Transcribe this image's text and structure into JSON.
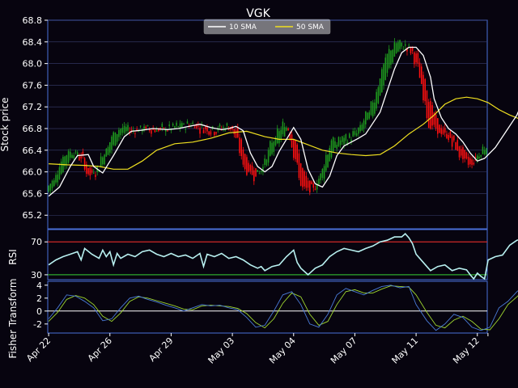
{
  "chart_data": [
    {
      "type": "candlestick",
      "title": "VGK",
      "ylabel": "Stock price",
      "ylim": [
        64.95,
        68.8
      ],
      "yticks": [
        65.2,
        65.6,
        66.0,
        66.4,
        66.8,
        67.2,
        67.6,
        68.0,
        68.4,
        68.8
      ],
      "x_dates": [
        "Apr 22",
        "Apr 26",
        "Apr 29",
        "May 03",
        "May 04",
        "May 07",
        "May 11",
        "May 12"
      ],
      "x_tick_index": [
        0,
        34,
        68,
        102,
        136,
        170,
        204,
        238
      ],
      "n_points": 244,
      "up_color": "#1e9a1e",
      "down_color": "#ff1010",
      "legend": {
        "placement": "top-center",
        "entries": [
          "10 SMA",
          "50 SMA"
        ]
      },
      "sma10": {
        "name": "10 SMA",
        "color": "#ffffff",
        "points": [
          [
            0,
            65.55
          ],
          [
            6,
            65.72
          ],
          [
            12,
            66.1
          ],
          [
            16,
            66.3
          ],
          [
            22,
            66.32
          ],
          [
            25,
            66.1
          ],
          [
            30,
            65.98
          ],
          [
            36,
            66.3
          ],
          [
            42,
            66.65
          ],
          [
            46,
            66.75
          ],
          [
            52,
            66.77
          ],
          [
            58,
            66.8
          ],
          [
            66,
            66.78
          ],
          [
            72,
            66.8
          ],
          [
            78,
            66.84
          ],
          [
            84,
            66.88
          ],
          [
            90,
            66.82
          ],
          [
            96,
            66.78
          ],
          [
            100,
            66.8
          ],
          [
            104,
            66.84
          ],
          [
            108,
            66.76
          ],
          [
            112,
            66.35
          ],
          [
            116,
            66.1
          ],
          [
            120,
            66.0
          ],
          [
            124,
            66.1
          ],
          [
            128,
            66.38
          ],
          [
            132,
            66.6
          ],
          [
            136,
            66.82
          ],
          [
            140,
            66.6
          ],
          [
            144,
            66.05
          ],
          [
            148,
            65.78
          ],
          [
            152,
            65.72
          ],
          [
            156,
            65.92
          ],
          [
            160,
            66.3
          ],
          [
            164,
            66.48
          ],
          [
            168,
            66.55
          ],
          [
            172,
            66.62
          ],
          [
            176,
            66.7
          ],
          [
            180,
            66.9
          ],
          [
            184,
            67.1
          ],
          [
            188,
            67.5
          ],
          [
            192,
            67.9
          ],
          [
            196,
            68.2
          ],
          [
            200,
            68.3
          ],
          [
            204,
            68.3
          ],
          [
            208,
            68.15
          ],
          [
            212,
            67.75
          ],
          [
            214,
            67.35
          ],
          [
            218,
            67.0
          ],
          [
            222,
            66.8
          ],
          [
            226,
            66.7
          ],
          [
            230,
            66.55
          ],
          [
            234,
            66.35
          ],
          [
            238,
            66.2
          ],
          [
            242,
            66.25
          ],
          [
            248,
            66.45
          ],
          [
            254,
            66.75
          ],
          [
            260,
            67.05
          ],
          [
            265,
            67.45
          ]
        ]
      },
      "sma50": {
        "name": "50 SMA",
        "color": "#f0e020",
        "points": [
          [
            0,
            66.15
          ],
          [
            10,
            66.13
          ],
          [
            20,
            66.12
          ],
          [
            28,
            66.1
          ],
          [
            36,
            66.05
          ],
          [
            44,
            66.05
          ],
          [
            52,
            66.2
          ],
          [
            60,
            66.4
          ],
          [
            70,
            66.52
          ],
          [
            80,
            66.55
          ],
          [
            90,
            66.62
          ],
          [
            100,
            66.72
          ],
          [
            110,
            66.75
          ],
          [
            120,
            66.65
          ],
          [
            128,
            66.6
          ],
          [
            136,
            66.6
          ],
          [
            144,
            66.5
          ],
          [
            152,
            66.4
          ],
          [
            160,
            66.35
          ],
          [
            168,
            66.32
          ],
          [
            176,
            66.3
          ],
          [
            184,
            66.32
          ],
          [
            192,
            66.48
          ],
          [
            200,
            66.7
          ],
          [
            208,
            66.88
          ],
          [
            214,
            67.05
          ],
          [
            220,
            67.25
          ],
          [
            226,
            67.35
          ],
          [
            232,
            67.38
          ],
          [
            238,
            67.35
          ],
          [
            244,
            67.28
          ],
          [
            250,
            67.15
          ],
          [
            256,
            67.05
          ],
          [
            262,
            66.97
          ],
          [
            265,
            66.95
          ]
        ]
      }
    },
    {
      "type": "line",
      "ylabel": "RSI",
      "ylim": [
        24,
        85
      ],
      "yticks": [
        30,
        70
      ],
      "overbought": 70,
      "oversold": 30,
      "overbought_color": "#d02828",
      "oversold_color": "#2ea82e",
      "series": [
        {
          "color": "#b8f0f0",
          "points": [
            [
              0,
              42
            ],
            [
              4,
              48
            ],
            [
              8,
              52
            ],
            [
              12,
              55
            ],
            [
              16,
              58
            ],
            [
              18,
              48
            ],
            [
              20,
              62
            ],
            [
              24,
              55
            ],
            [
              28,
              50
            ],
            [
              30,
              60
            ],
            [
              32,
              52
            ],
            [
              34,
              58
            ],
            [
              36,
              42
            ],
            [
              38,
              56
            ],
            [
              40,
              50
            ],
            [
              44,
              55
            ],
            [
              48,
              52
            ],
            [
              52,
              58
            ],
            [
              56,
              60
            ],
            [
              60,
              55
            ],
            [
              64,
              52
            ],
            [
              68,
              56
            ],
            [
              72,
              52
            ],
            [
              76,
              54
            ],
            [
              80,
              50
            ],
            [
              84,
              56
            ],
            [
              86,
              40
            ],
            [
              88,
              55
            ],
            [
              92,
              52
            ],
            [
              96,
              56
            ],
            [
              100,
              50
            ],
            [
              104,
              52
            ],
            [
              108,
              48
            ],
            [
              112,
              42
            ],
            [
              116,
              38
            ],
            [
              118,
              40
            ],
            [
              120,
              35
            ],
            [
              124,
              40
            ],
            [
              128,
              42
            ],
            [
              132,
              52
            ],
            [
              136,
              60
            ],
            [
              138,
              45
            ],
            [
              140,
              38
            ],
            [
              144,
              30
            ],
            [
              148,
              38
            ],
            [
              152,
              42
            ],
            [
              156,
              52
            ],
            [
              160,
              58
            ],
            [
              164,
              62
            ],
            [
              168,
              60
            ],
            [
              172,
              58
            ],
            [
              176,
              62
            ],
            [
              180,
              65
            ],
            [
              184,
              70
            ],
            [
              188,
              72
            ],
            [
              192,
              76
            ],
            [
              196,
              76
            ],
            [
              198,
              80
            ],
            [
              200,
              75
            ],
            [
              202,
              68
            ],
            [
              204,
              55
            ],
            [
              208,
              45
            ],
            [
              212,
              35
            ],
            [
              216,
              40
            ],
            [
              220,
              42
            ],
            [
              224,
              35
            ],
            [
              228,
              38
            ],
            [
              232,
              36
            ],
            [
              234,
              30
            ],
            [
              236,
              25
            ],
            [
              238,
              32
            ],
            [
              240,
              28
            ],
            [
              242,
              25
            ],
            [
              244,
              48
            ],
            [
              248,
              52
            ],
            [
              252,
              54
            ],
            [
              256,
              66
            ],
            [
              260,
              72
            ],
            [
              265,
              74
            ]
          ]
        }
      ]
    },
    {
      "type": "line",
      "ylabel": "Fisher Transform",
      "ylim": [
        -3.4,
        4.6
      ],
      "yticks": [
        -2,
        0,
        2,
        4
      ],
      "zero_line_color": "#ffffff",
      "series": [
        {
          "color": "#4a7bd8",
          "points": [
            [
              0,
              -1.2
            ],
            [
              5,
              0.5
            ],
            [
              10,
              2.5
            ],
            [
              15,
              2.3
            ],
            [
              20,
              1.5
            ],
            [
              25,
              0.5
            ],
            [
              30,
              -1.5
            ],
            [
              35,
              -1.2
            ],
            [
              40,
              0.5
            ],
            [
              45,
              2.0
            ],
            [
              50,
              2.3
            ],
            [
              55,
              1.8
            ],
            [
              60,
              1.4
            ],
            [
              65,
              0.9
            ],
            [
              70,
              0.5
            ],
            [
              75,
              0.0
            ],
            [
              80,
              0.5
            ],
            [
              85,
              1.0
            ],
            [
              90,
              0.8
            ],
            [
              95,
              0.9
            ],
            [
              100,
              0.5
            ],
            [
              105,
              0.2
            ],
            [
              110,
              -1.0
            ],
            [
              115,
              -2.5
            ],
            [
              120,
              -2.2
            ],
            [
              125,
              0.0
            ],
            [
              130,
              2.5
            ],
            [
              135,
              3.0
            ],
            [
              140,
              1.0
            ],
            [
              145,
              -2.0
            ],
            [
              150,
              -2.5
            ],
            [
              155,
              -0.5
            ],
            [
              160,
              2.5
            ],
            [
              165,
              3.5
            ],
            [
              170,
              3.0
            ],
            [
              175,
              2.5
            ],
            [
              180,
              3.2
            ],
            [
              185,
              3.8
            ],
            [
              190,
              4.0
            ],
            [
              195,
              3.6
            ],
            [
              200,
              3.8
            ],
            [
              204,
              1.0
            ],
            [
              210,
              -1.5
            ],
            [
              215,
              -3.0
            ],
            [
              220,
              -2.0
            ],
            [
              225,
              -0.5
            ],
            [
              230,
              -1.0
            ],
            [
              235,
              -2.5
            ],
            [
              240,
              -3.0
            ],
            [
              245,
              -2.5
            ],
            [
              250,
              0.5
            ],
            [
              255,
              1.5
            ],
            [
              260,
              3.0
            ],
            [
              265,
              4.2
            ]
          ]
        },
        {
          "color": "#a0d830",
          "points": [
            [
              0,
              -1.6
            ],
            [
              5,
              -0.2
            ],
            [
              10,
              1.8
            ],
            [
              15,
              2.4
            ],
            [
              20,
              2.0
            ],
            [
              25,
              1.0
            ],
            [
              30,
              -0.8
            ],
            [
              35,
              -1.6
            ],
            [
              40,
              -0.3
            ],
            [
              45,
              1.5
            ],
            [
              50,
              2.2
            ],
            [
              55,
              2.0
            ],
            [
              60,
              1.6
            ],
            [
              65,
              1.2
            ],
            [
              70,
              0.8
            ],
            [
              75,
              0.3
            ],
            [
              80,
              0.2
            ],
            [
              85,
              0.8
            ],
            [
              90,
              0.9
            ],
            [
              95,
              0.8
            ],
            [
              100,
              0.7
            ],
            [
              105,
              0.4
            ],
            [
              110,
              -0.4
            ],
            [
              115,
              -1.8
            ],
            [
              120,
              -2.6
            ],
            [
              125,
              -1.2
            ],
            [
              130,
              1.2
            ],
            [
              135,
              2.8
            ],
            [
              140,
              2.2
            ],
            [
              145,
              -0.5
            ],
            [
              150,
              -2.2
            ],
            [
              155,
              -1.6
            ],
            [
              160,
              1.0
            ],
            [
              165,
              3.0
            ],
            [
              170,
              3.3
            ],
            [
              175,
              2.8
            ],
            [
              180,
              2.8
            ],
            [
              185,
              3.4
            ],
            [
              190,
              3.9
            ],
            [
              195,
              3.8
            ],
            [
              200,
              3.7
            ],
            [
              204,
              2.5
            ],
            [
              210,
              -0.2
            ],
            [
              215,
              -2.2
            ],
            [
              220,
              -2.6
            ],
            [
              225,
              -1.4
            ],
            [
              230,
              -0.8
            ],
            [
              235,
              -1.6
            ],
            [
              240,
              -2.8
            ],
            [
              245,
              -2.9
            ],
            [
              250,
              -1.2
            ],
            [
              255,
              1.0
            ],
            [
              260,
              2.2
            ],
            [
              265,
              3.6
            ]
          ]
        }
      ]
    }
  ]
}
